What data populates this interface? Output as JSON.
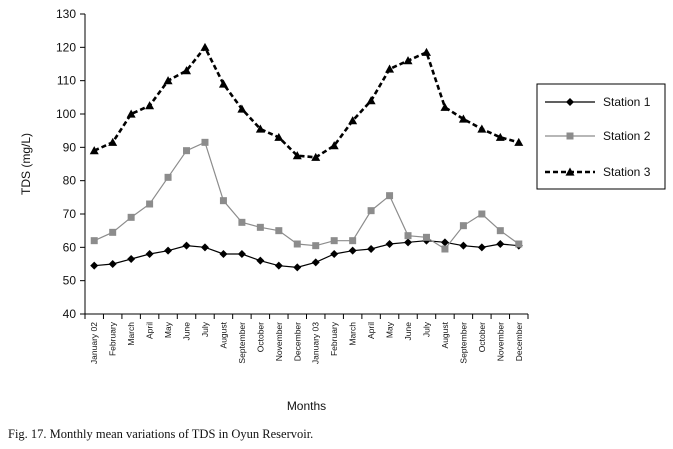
{
  "caption": "Fig. 17. Monthly mean variations of TDS in Oyun Reservoir.",
  "chart_data": {
    "type": "line",
    "title": "",
    "xlabel": "Months",
    "ylabel": "TDS (mg/L)",
    "ylim": [
      40,
      130
    ],
    "yticks": [
      40,
      50,
      60,
      70,
      80,
      90,
      100,
      110,
      120,
      130
    ],
    "grid": false,
    "legend_position": "right",
    "categories": [
      "January 02",
      "February",
      "March",
      "April",
      "May",
      "June",
      "July",
      "August",
      "September",
      "October",
      "November",
      "December",
      "January 03",
      "February",
      "March",
      "April",
      "May",
      "June",
      "July",
      "August",
      "September",
      "October",
      "November",
      "December"
    ],
    "series": [
      {
        "name": "Station 1",
        "marker": "diamond",
        "line": "solid",
        "color": "#000000",
        "values": [
          54.5,
          55,
          56.5,
          58,
          59,
          60.5,
          60,
          58,
          58,
          56,
          54.5,
          54,
          55.5,
          58,
          59,
          59.5,
          61,
          61.5,
          62,
          61.5,
          60.5,
          60,
          61,
          60.5
        ]
      },
      {
        "name": "Station 2",
        "marker": "square",
        "line": "solid",
        "color": "#8c8c8c",
        "values": [
          62,
          64.5,
          69,
          73,
          81,
          89,
          91.5,
          74,
          67.5,
          66,
          65,
          61,
          60.5,
          62,
          62,
          71,
          75.5,
          63.5,
          63,
          59.5,
          66.5,
          70,
          65,
          61
        ]
      },
      {
        "name": "Station 3",
        "marker": "triangle",
        "line": "dashed",
        "color": "#000000",
        "values": [
          89,
          91.5,
          100,
          102.5,
          110,
          113,
          120,
          109,
          101.5,
          95.5,
          93,
          87.5,
          87,
          90.5,
          98,
          104,
          113.5,
          116,
          118.5,
          102,
          98.5,
          95.5,
          93,
          91.5
        ]
      }
    ]
  }
}
